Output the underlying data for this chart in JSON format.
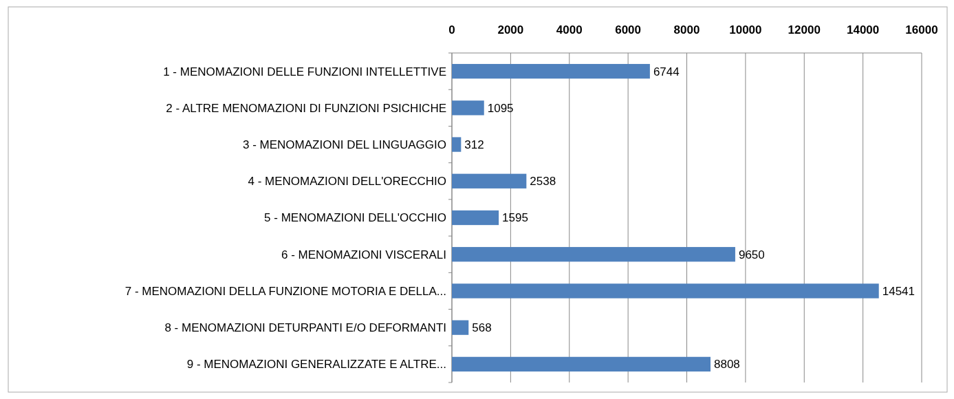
{
  "chart_data": {
    "type": "bar",
    "orientation": "horizontal",
    "categories": [
      "1 - MENOMAZIONI DELLE FUNZIONI INTELLETTIVE",
      "2 - ALTRE MENOMAZIONI DI FUNZIONI PSICHICHE",
      "3 - MENOMAZIONI DEL LINGUAGGIO",
      "4 - MENOMAZIONI DELL'ORECCHIO",
      "5 - MENOMAZIONI DELL'OCCHIO",
      "6 - MENOMAZIONI VISCERALI",
      "7 - MENOMAZIONI DELLA FUNZIONE MOTORIA E DELLA...",
      "8 - MENOMAZIONI DETURPANTI E/O DEFORMANTI",
      "9 - MENOMAZIONI GENERALIZZATE E ALTRE..."
    ],
    "values": [
      6744,
      1095,
      312,
      2538,
      1595,
      9650,
      14541,
      568,
      8808
    ],
    "color": "#4f81bd",
    "xlim": [
      0,
      16000
    ],
    "xticks": [
      0,
      2000,
      4000,
      6000,
      8000,
      10000,
      12000,
      14000,
      16000
    ],
    "grid": "x",
    "data_labels": true
  }
}
